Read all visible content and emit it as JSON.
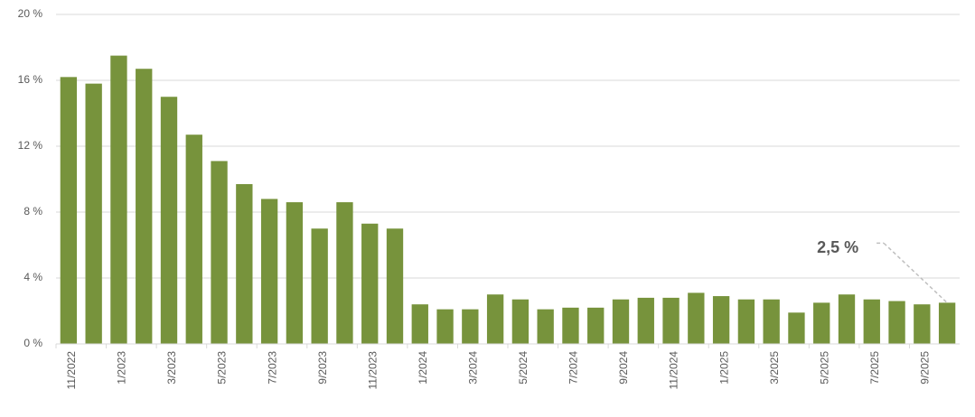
{
  "chart_data": {
    "type": "bar",
    "categories": [
      "11/2022",
      null,
      "1/2023",
      null,
      "3/2023",
      null,
      "5/2023",
      null,
      "7/2023",
      null,
      "9/2023",
      null,
      "11/2023",
      null,
      "1/2024",
      null,
      "3/2024",
      null,
      "5/2024",
      null,
      "7/2024",
      null,
      "9/2024",
      null,
      "11/2024",
      null,
      "1/2025",
      null,
      "3/2025",
      null,
      "5/2025",
      null,
      "7/2025",
      null,
      "9/2025",
      null
    ],
    "values": [
      16.2,
      15.8,
      17.5,
      16.7,
      15.0,
      12.7,
      11.1,
      9.7,
      8.8,
      8.6,
      7.0,
      8.6,
      7.3,
      7.0,
      2.4,
      2.1,
      2.1,
      3.0,
      2.7,
      2.1,
      2.2,
      2.2,
      2.7,
      2.8,
      2.8,
      3.1,
      2.9,
      2.7,
      2.7,
      1.9,
      2.5,
      3.0,
      2.7,
      2.6,
      2.4,
      2.5
    ],
    "value_labels": [
      null,
      null,
      null,
      null,
      null,
      null,
      null,
      null,
      null,
      null,
      null,
      null,
      null,
      null,
      null,
      null,
      null,
      null,
      null,
      null,
      null,
      null,
      null,
      null,
      null,
      null,
      null,
      null,
      null,
      null,
      null,
      null,
      null,
      null,
      null,
      "2,5 %"
    ],
    "color": "#77933c",
    "ylim": [
      0,
      20
    ],
    "yticks": [
      {
        "value": 0,
        "label": "0 %"
      },
      {
        "value": 4,
        "label": "4 %"
      },
      {
        "value": 8,
        "label": "8 %"
      },
      {
        "value": 12,
        "label": "12 %"
      },
      {
        "value": 16,
        "label": "16 %"
      },
      {
        "value": 20,
        "label": "20 %"
      }
    ],
    "grid": true
  }
}
